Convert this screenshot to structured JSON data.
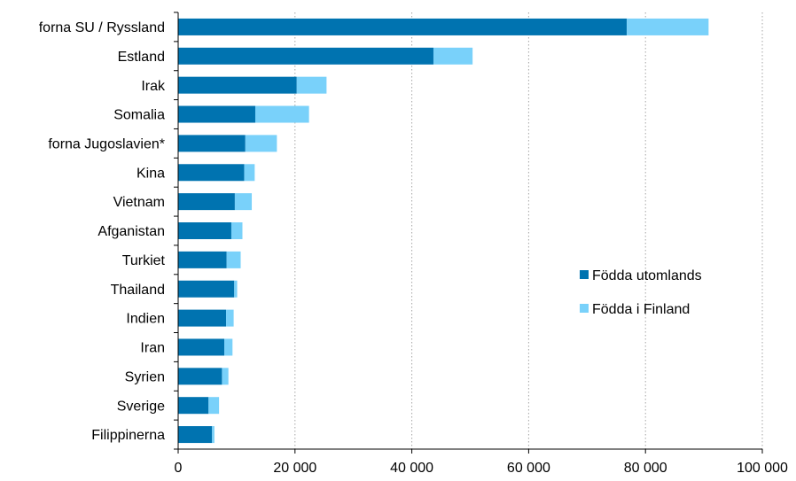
{
  "chart_data": {
    "type": "bar",
    "orientation": "horizontal",
    "stacked": true,
    "categories": [
      "forna SU / Ryssland",
      "Estland",
      "Irak",
      "Somalia",
      "forna Jugoslavien*",
      "Kina",
      "Vietnam",
      "Afganistan",
      "Turkiet",
      "Thailand",
      "Indien",
      "Iran",
      "Syrien",
      "Sverige",
      "Filippinerna"
    ],
    "series": [
      {
        "name": "Födda utomlands",
        "color": "#0073b0",
        "values": [
          76800,
          43700,
          20300,
          13200,
          11500,
          11300,
          9700,
          9100,
          8300,
          9600,
          8200,
          7900,
          7500,
          5200,
          5800
        ]
      },
      {
        "name": "Födda i Finland",
        "color": "#79d1fa",
        "values": [
          14000,
          6700,
          5100,
          9200,
          5400,
          1800,
          2900,
          1900,
          2400,
          500,
          1300,
          1400,
          1100,
          1800,
          400
        ]
      }
    ],
    "xlim": [
      0,
      100000
    ],
    "xticks": [
      0,
      20000,
      40000,
      60000,
      80000,
      100000
    ],
    "xtick_labels": [
      "0",
      "20 000",
      "40 000",
      "60 000",
      "80 000",
      "100 000"
    ],
    "grid": "vertical dotted",
    "legend": "right"
  }
}
